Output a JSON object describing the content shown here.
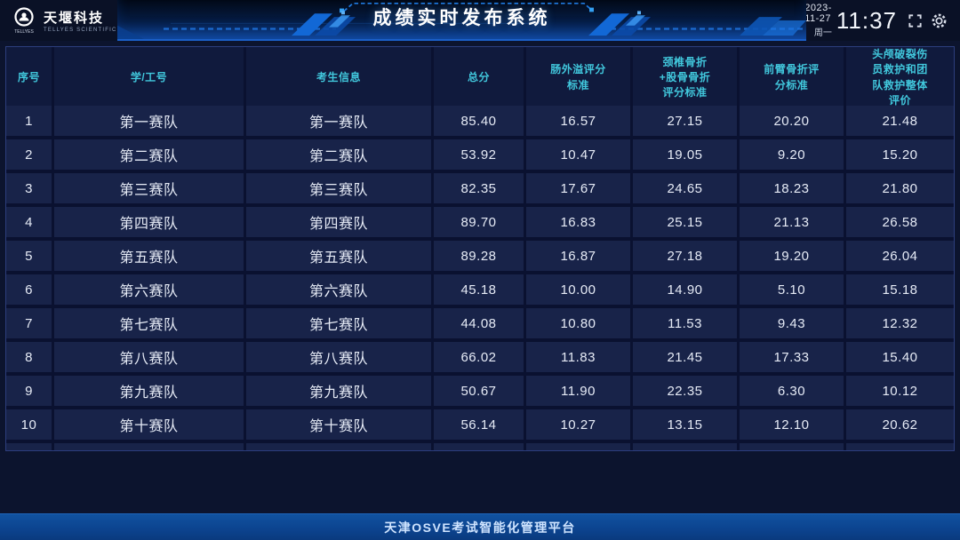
{
  "topbar": {
    "logo": {
      "name_cn": "天堰科技",
      "name_en": "TELLYES SCIENTIFIC"
    },
    "title": "成绩实时发布系统",
    "date": "2023-11-27",
    "weekday": "周一",
    "time": "11:37",
    "icons": [
      "fullscreen-icon",
      "settings-icon"
    ]
  },
  "table": {
    "columns": [
      "序号",
      "学/工号",
      "考生信息",
      "总分",
      "肠外溢评分\n标准",
      "颈椎骨折\n+股骨骨折\n评分标准",
      "前臂骨折评\n分标准",
      "头颅破裂伤\n员救护和团\n队救护整体\n评价"
    ],
    "rows": [
      [
        "1",
        "第一赛队",
        "第一赛队",
        "85.40",
        "16.57",
        "27.15",
        "20.20",
        "21.48"
      ],
      [
        "2",
        "第二赛队",
        "第二赛队",
        "53.92",
        "10.47",
        "19.05",
        "9.20",
        "15.20"
      ],
      [
        "3",
        "第三赛队",
        "第三赛队",
        "82.35",
        "17.67",
        "24.65",
        "18.23",
        "21.80"
      ],
      [
        "4",
        "第四赛队",
        "第四赛队",
        "89.70",
        "16.83",
        "25.15",
        "21.13",
        "26.58"
      ],
      [
        "5",
        "第五赛队",
        "第五赛队",
        "89.28",
        "16.87",
        "27.18",
        "19.20",
        "26.04"
      ],
      [
        "6",
        "第六赛队",
        "第六赛队",
        "45.18",
        "10.00",
        "14.90",
        "5.10",
        "15.18"
      ],
      [
        "7",
        "第七赛队",
        "第七赛队",
        "44.08",
        "10.80",
        "11.53",
        "9.43",
        "12.32"
      ],
      [
        "8",
        "第八赛队",
        "第八赛队",
        "66.02",
        "11.83",
        "21.45",
        "17.33",
        "15.40"
      ],
      [
        "9",
        "第九赛队",
        "第九赛队",
        "50.67",
        "11.90",
        "22.35",
        "6.30",
        "10.12"
      ],
      [
        "10",
        "第十赛队",
        "第十赛队",
        "56.14",
        "10.27",
        "13.15",
        "12.10",
        "20.62"
      ]
    ]
  },
  "footer": {
    "text": "天津OSVE考试智能化管理平台"
  },
  "colors": {
    "page_bg": "#0c142e",
    "accent_cyan": "#41c7dc",
    "banner_glow": "#1a5fc8",
    "row_bg": "#182349",
    "footer_blue": "#11529f"
  }
}
